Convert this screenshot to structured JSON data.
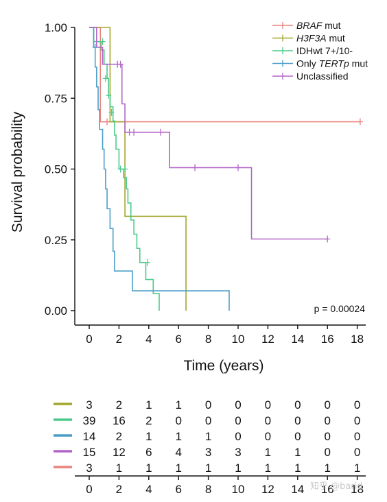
{
  "chart_data": [
    {
      "type": "line",
      "subtype": "kaplan-meier",
      "title": "",
      "xlabel": "Time (years)",
      "ylabel": "Survival probability",
      "xlim": [
        0,
        18
      ],
      "ylim": [
        0,
        1
      ],
      "xticks": [
        "0",
        "2",
        "4",
        "6",
        "8",
        "10",
        "12",
        "14",
        "16",
        "18"
      ],
      "yticks": [
        "0.00",
        "0.25",
        "0.50",
        "0.75",
        "1.00"
      ],
      "grid": false,
      "legend_position": "top-right",
      "annotation": "p = 0.00024",
      "series": [
        {
          "name_prefix": "BRAF",
          "name_suffix": " mut",
          "color": "#e8827c",
          "steps": [
            [
              0,
              1.0
            ],
            [
              0.75,
              0.667
            ],
            [
              18.2,
              0.667
            ]
          ],
          "censors": [
            [
              1.2,
              0.667
            ],
            [
              18.2,
              0.667
            ]
          ]
        },
        {
          "name_prefix": "H3F3A",
          "name_suffix": " mut",
          "color": "#a3a62a",
          "steps": [
            [
              0,
              1.0
            ],
            [
              1.4,
              0.667
            ],
            [
              2.4,
              0.333
            ],
            [
              6.5,
              0.0
            ]
          ],
          "censors": []
        },
        {
          "name_prefix": "",
          "name_suffix": "IDHwt 7+/10-",
          "color": "#4cca8c",
          "steps": [
            [
              0,
              1.0
            ],
            [
              0.3,
              0.95
            ],
            [
              0.8,
              0.92
            ],
            [
              1.0,
              0.87
            ],
            [
              1.2,
              0.82
            ],
            [
              1.3,
              0.76
            ],
            [
              1.4,
              0.72
            ],
            [
              1.6,
              0.67
            ],
            [
              1.7,
              0.62
            ],
            [
              1.8,
              0.57
            ],
            [
              2.0,
              0.5
            ],
            [
              2.3,
              0.47
            ],
            [
              2.5,
              0.43
            ],
            [
              2.6,
              0.38
            ],
            [
              2.8,
              0.32
            ],
            [
              3.0,
              0.27
            ],
            [
              3.2,
              0.22
            ],
            [
              3.4,
              0.17
            ],
            [
              3.8,
              0.11
            ],
            [
              4.3,
              0.06
            ],
            [
              4.7,
              0.0
            ]
          ],
          "censors": [
            [
              0.9,
              0.95
            ],
            [
              1.1,
              0.82
            ],
            [
              1.3,
              0.76
            ],
            [
              1.5,
              0.7
            ],
            [
              2.1,
              0.5
            ],
            [
              2.4,
              0.5
            ],
            [
              3.9,
              0.17
            ]
          ]
        },
        {
          "name_prefix": "Only ",
          "name_suffix": "TERTp",
          "name_tail": " mut",
          "color": "#4c9ec8",
          "steps": [
            [
              0,
              1.0
            ],
            [
              0.3,
              0.93
            ],
            [
              0.4,
              0.86
            ],
            [
              0.5,
              0.79
            ],
            [
              0.6,
              0.71
            ],
            [
              0.7,
              0.64
            ],
            [
              0.9,
              0.57
            ],
            [
              1.0,
              0.5
            ],
            [
              1.1,
              0.43
            ],
            [
              1.2,
              0.36
            ],
            [
              1.4,
              0.29
            ],
            [
              1.6,
              0.21
            ],
            [
              1.7,
              0.14
            ],
            [
              2.9,
              0.07
            ],
            [
              9.4,
              0.0
            ]
          ],
          "censors": [
            [
              0.4,
              0.93
            ]
          ]
        },
        {
          "name_prefix": "",
          "name_suffix": "Unclassified",
          "color": "#b264c8",
          "steps": [
            [
              0,
              1.0
            ],
            [
              0.5,
              0.93
            ],
            [
              0.9,
              0.87
            ],
            [
              2.2,
              0.73
            ],
            [
              2.4,
              0.63
            ],
            [
              5.4,
              0.505
            ],
            [
              10.9,
              0.253
            ],
            [
              16.0,
              0.253
            ]
          ],
          "censors": [
            [
              1.9,
              0.87
            ],
            [
              2.1,
              0.87
            ],
            [
              2.7,
              0.63
            ],
            [
              3.0,
              0.63
            ],
            [
              4.8,
              0.63
            ],
            [
              7.1,
              0.505
            ],
            [
              10.0,
              0.505
            ],
            [
              16.0,
              0.253
            ]
          ]
        }
      ]
    },
    {
      "type": "table",
      "title": "",
      "columns": [
        "0",
        "2",
        "4",
        "6",
        "8",
        "10",
        "12",
        "14",
        "16",
        "18"
      ],
      "rows": [
        {
          "color": "#a3a62a",
          "values": [
            "3",
            "2",
            "1",
            "1",
            "0",
            "0",
            "0",
            "0",
            "0",
            "0"
          ]
        },
        {
          "color": "#4cca8c",
          "values": [
            "39",
            "16",
            "2",
            "0",
            "0",
            "0",
            "0",
            "0",
            "0",
            "0"
          ]
        },
        {
          "color": "#4c9ec8",
          "values": [
            "14",
            "2",
            "1",
            "1",
            "1",
            "0",
            "0",
            "0",
            "0",
            "0"
          ]
        },
        {
          "color": "#b264c8",
          "values": [
            "15",
            "12",
            "6",
            "4",
            "3",
            "3",
            "1",
            "1",
            "0",
            "0"
          ]
        },
        {
          "color": "#e8827c",
          "values": [
            "3",
            "1",
            "1",
            "1",
            "1",
            "1",
            "1",
            "1",
            "1",
            "1"
          ]
        }
      ]
    }
  ],
  "watermark": "知乎 @barid"
}
